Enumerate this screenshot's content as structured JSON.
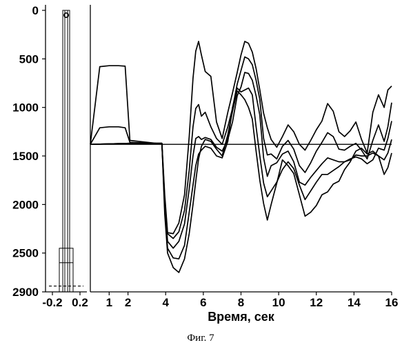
{
  "caption": "Фиг. 7",
  "chart_data": [
    {
      "type": "line",
      "title": "",
      "xlabel": "",
      "ylabel": "",
      "xlim": [
        -0.3,
        0.3
      ],
      "ylim": [
        0,
        2900
      ],
      "y_inverted": true,
      "xticks": [
        "-0.2",
        "0.2"
      ],
      "xtick_values": [
        -0.2,
        0.2
      ],
      "yticks": [
        "0",
        "500",
        "1000",
        "1500",
        "2000",
        "2500",
        "2900"
      ],
      "ytick_values": [
        0,
        500,
        1000,
        1500,
        2000,
        2500,
        2900
      ],
      "series": [
        {
          "x": [
            -0.05,
            -0.05,
            0.05,
            0.05
          ],
          "y": [
            2900,
            0,
            0,
            2900
          ]
        },
        {
          "x": [
            -0.02,
            -0.02,
            0.02,
            0.02
          ],
          "y": [
            2900,
            0,
            0,
            2900
          ]
        },
        {
          "x": [
            -0.1,
            -0.1,
            0.1,
            0.1
          ],
          "y": [
            2900,
            2450,
            2450,
            2900
          ]
        },
        {
          "x": [
            -0.1,
            0.1
          ],
          "y": [
            2600,
            2600
          ]
        }
      ],
      "marker": {
        "x": 0.0,
        "y": 50
      },
      "dashed_line": {
        "x": [
          -0.25,
          0.25
        ],
        "y": [
          2840,
          2840
        ]
      }
    },
    {
      "type": "line",
      "title": "",
      "xlabel": "Время, сек",
      "ylabel": "",
      "xlim": [
        0,
        16
      ],
      "ylim": [
        0,
        2900
      ],
      "y_inverted": true,
      "shared_y_with_left_panel": true,
      "xticks": [
        "1",
        "2",
        "4",
        "6",
        "8",
        "10",
        "12",
        "14",
        "16"
      ],
      "xtick_values": [
        1,
        2,
        4,
        6,
        8,
        10,
        12,
        14,
        16
      ],
      "grid": false,
      "legend": "none",
      "series": [
        {
          "x": [
            0,
            16
          ],
          "y": [
            1380,
            1380
          ]
        },
        {
          "x": [
            0,
            0.5,
            1.0,
            1.5,
            1.85,
            2.1,
            3.5,
            3.8,
            3.95,
            4.1,
            4.4,
            4.7,
            5.0,
            5.25,
            5.45,
            5.6,
            5.75,
            5.9,
            6.1,
            6.4,
            6.7,
            7.0,
            7.3,
            7.55,
            7.8,
            8.0,
            8.2,
            8.4,
            8.6,
            8.8,
            9.0,
            9.2,
            9.4,
            9.6,
            9.9,
            10.2,
            10.5,
            10.8,
            11.1,
            11.4,
            11.7,
            12.0,
            12.3,
            12.6,
            12.9,
            13.2,
            13.5,
            13.8,
            14.1,
            14.4,
            14.7,
            15.0,
            15.3,
            15.6,
            15.8,
            16.0
          ],
          "y": [
            1380,
            580,
            570,
            570,
            575,
            1340,
            1370,
            1370,
            1900,
            2290,
            2300,
            2190,
            1900,
            1300,
            700,
            420,
            320,
            460,
            630,
            680,
            1150,
            1320,
            1050,
            850,
            640,
            460,
            320,
            340,
            430,
            600,
            820,
            1060,
            1210,
            1330,
            1410,
            1300,
            1180,
            1250,
            1380,
            1440,
            1340,
            1230,
            1140,
            960,
            1040,
            1250,
            1300,
            1240,
            1150,
            1330,
            1470,
            1050,
            870,
            1000,
            820,
            780
          ]
        },
        {
          "x": [
            0,
            0.5,
            1.0,
            1.5,
            1.85,
            2.1,
            3.5,
            3.8,
            3.95,
            4.1,
            4.4,
            4.7,
            5.0,
            5.25,
            5.45,
            5.6,
            5.75,
            5.9,
            6.1,
            6.4,
            6.7,
            7.0,
            7.3,
            7.55,
            7.8,
            8.0,
            8.2,
            8.4,
            8.6,
            8.8,
            9.0,
            9.2,
            9.4,
            9.6,
            9.9,
            10.2,
            10.5,
            10.8,
            11.1,
            11.4,
            11.7,
            12.0,
            12.3,
            12.6,
            12.9,
            13.2,
            13.5,
            13.8,
            14.1,
            14.4,
            14.7,
            15.0,
            15.3,
            15.6,
            15.8,
            16.0
          ],
          "y": [
            1380,
            1210,
            1200,
            1200,
            1210,
            1360,
            1370,
            1370,
            1950,
            2300,
            2350,
            2280,
            2060,
            1650,
            1200,
            1010,
            970,
            1090,
            1050,
            1200,
            1320,
            1380,
            1200,
            1010,
            760,
            620,
            480,
            500,
            560,
            720,
            920,
            1320,
            1490,
            1480,
            1530,
            1400,
            1340,
            1430,
            1600,
            1670,
            1570,
            1450,
            1360,
            1260,
            1300,
            1430,
            1440,
            1400,
            1370,
            1440,
            1530,
            1340,
            1180,
            1350,
            1200,
            950
          ]
        },
        {
          "x": [
            0,
            2.1,
            3.5,
            3.8,
            3.95,
            4.1,
            4.4,
            4.7,
            5.0,
            5.25,
            5.45,
            5.6,
            5.75,
            5.9,
            6.1,
            6.4,
            6.7,
            7.0,
            7.3,
            7.55,
            7.8,
            8.0,
            8.2,
            8.4,
            8.6,
            8.8,
            9.0,
            9.2,
            9.4,
            9.6,
            9.9,
            10.2,
            10.5,
            10.8,
            11.1,
            11.4,
            11.7,
            12.0,
            12.3,
            12.6,
            12.9,
            13.2,
            13.5,
            13.8,
            14.1,
            14.4,
            14.7,
            15.0,
            15.3,
            15.6,
            15.8,
            16.0
          ],
          "y": [
            1380,
            1370,
            1370,
            1370,
            2000,
            2380,
            2450,
            2380,
            2200,
            1840,
            1500,
            1320,
            1300,
            1330,
            1310,
            1330,
            1410,
            1450,
            1330,
            1150,
            880,
            790,
            640,
            650,
            720,
            880,
            1080,
            1520,
            1710,
            1600,
            1570,
            1480,
            1450,
            1560,
            1770,
            1800,
            1720,
            1650,
            1580,
            1520,
            1540,
            1560,
            1560,
            1530,
            1510,
            1530,
            1580,
            1540,
            1420,
            1440,
            1320,
            1140
          ]
        },
        {
          "x": [
            0,
            2.1,
            3.5,
            3.8,
            3.95,
            4.1,
            4.4,
            4.7,
            5.0,
            5.25,
            5.45,
            5.6,
            5.75,
            5.9,
            6.1,
            6.4,
            6.7,
            7.0,
            7.3,
            7.55,
            7.8,
            8.0,
            8.2,
            8.4,
            8.6,
            8.8,
            9.0,
            9.2,
            9.4,
            9.6,
            9.9,
            10.2,
            10.5,
            10.8,
            11.1,
            11.4,
            11.7,
            12.0,
            12.3,
            12.6,
            12.9,
            13.2,
            13.5,
            13.8,
            14.1,
            14.4,
            14.7,
            15.0,
            15.3,
            15.6,
            15.8,
            16.0
          ],
          "y": [
            1380,
            1370,
            1370,
            1370,
            2050,
            2450,
            2550,
            2560,
            2420,
            2080,
            1800,
            1600,
            1480,
            1440,
            1400,
            1420,
            1500,
            1520,
            1350,
            1000,
            800,
            840,
            820,
            800,
            870,
            1200,
            1500,
            1780,
            1920,
            1860,
            1770,
            1640,
            1560,
            1630,
            1800,
            1950,
            1860,
            1770,
            1690,
            1690,
            1650,
            1610,
            1560,
            1540,
            1490,
            1500,
            1500,
            1470,
            1500,
            1540,
            1470,
            1330
          ]
        },
        {
          "x": [
            0,
            2.1,
            3.5,
            3.8,
            3.95,
            4.1,
            4.4,
            4.7,
            5.0,
            5.25,
            5.45,
            5.6,
            5.75,
            5.9,
            6.1,
            6.4,
            6.7,
            7.0,
            7.3,
            7.55,
            7.8,
            8.0,
            8.2,
            8.4,
            8.6,
            8.8,
            9.0,
            9.2,
            9.4,
            9.6,
            9.9,
            10.2,
            10.5,
            10.8,
            11.1,
            11.4,
            11.7,
            12.0,
            12.3,
            12.6,
            12.9,
            13.2,
            13.5,
            13.8,
            14.1,
            14.4,
            14.7,
            15.0,
            15.3,
            15.6,
            15.8,
            16.0
          ],
          "y": [
            1380,
            1370,
            1370,
            1370,
            2100,
            2500,
            2650,
            2700,
            2560,
            2300,
            2000,
            1760,
            1530,
            1400,
            1330,
            1350,
            1430,
            1500,
            1280,
            1040,
            830,
            870,
            920,
            1000,
            1120,
            1450,
            1750,
            1990,
            2160,
            2000,
            1780,
            1540,
            1600,
            1680,
            1900,
            2120,
            2080,
            2010,
            1900,
            1870,
            1790,
            1760,
            1640,
            1560,
            1450,
            1420,
            1480,
            1450,
            1500,
            1690,
            1620,
            1470
          ]
        }
      ]
    }
  ]
}
